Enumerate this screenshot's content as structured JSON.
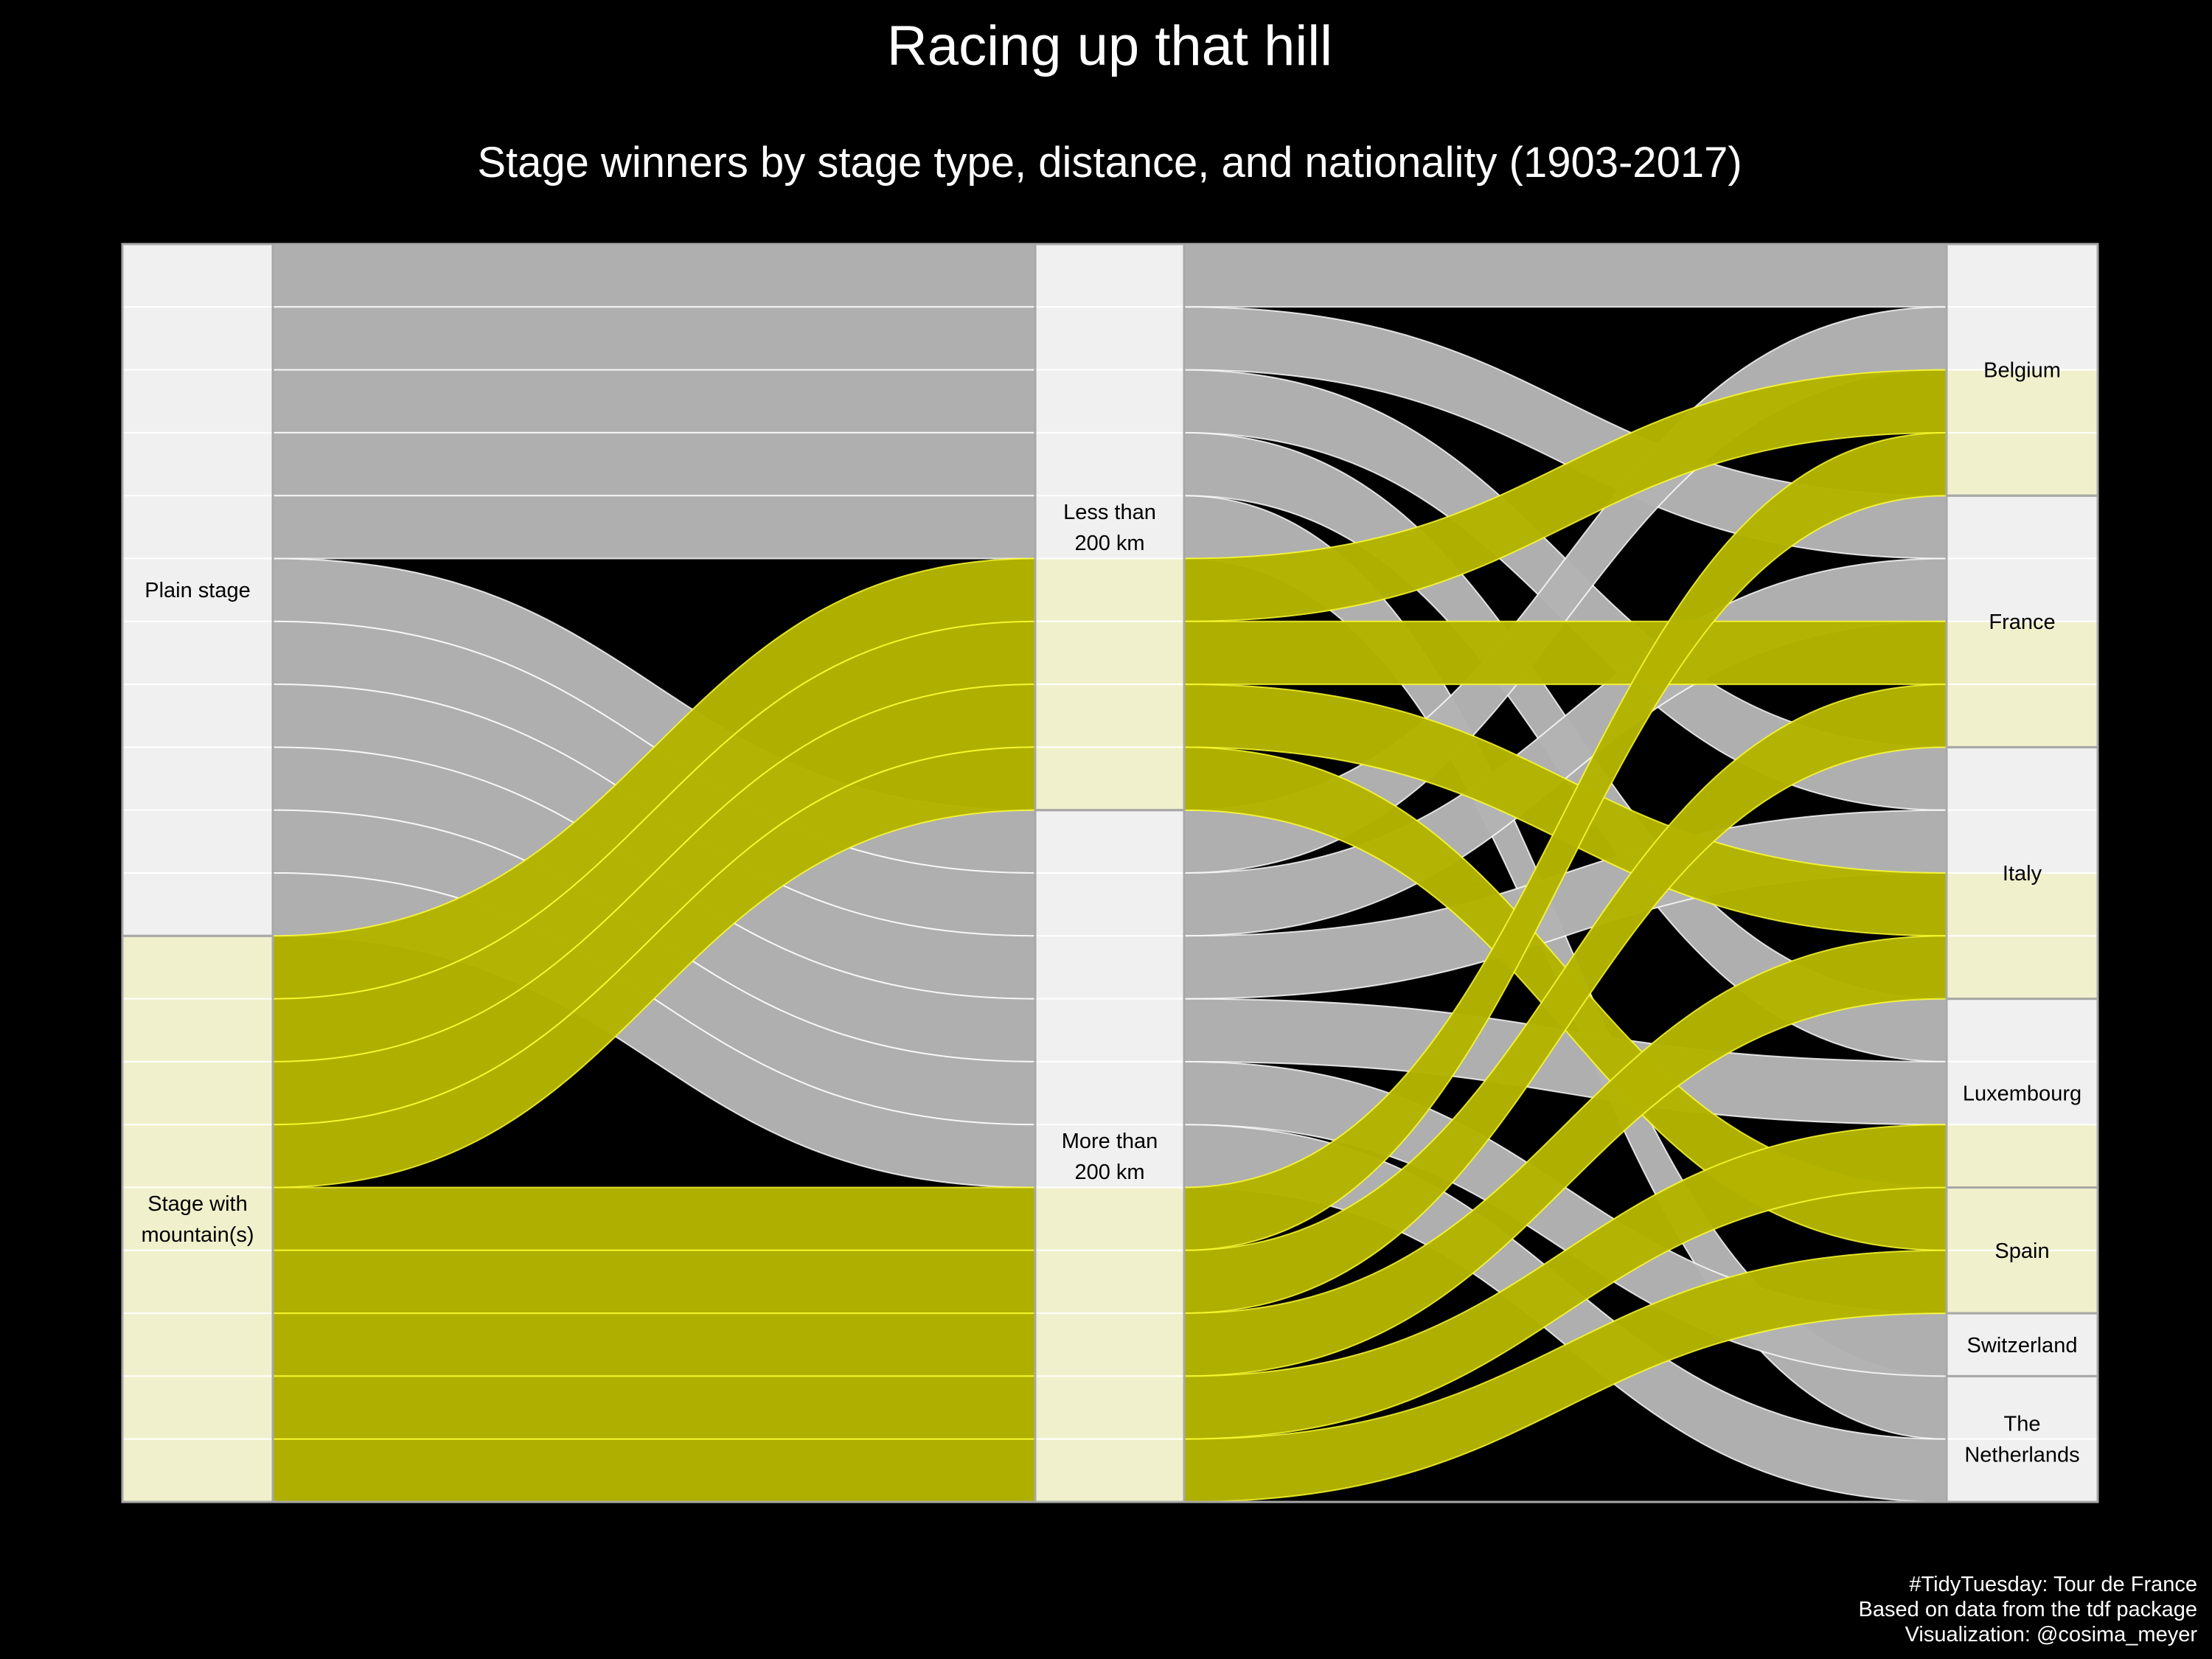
{
  "chart_data": {
    "type": "alluvial",
    "title": "Racing up that hill",
    "subtitle": "Stage winners by stage type, distance, and nationality (1903-2017)",
    "caption": [
      "#TidyTuesday: Tour de France",
      "Based on data from the tdf package",
      "Visualization: @cosima_meyer"
    ],
    "axes": [
      {
        "name": "stage_type",
        "categories": [
          "Plain stage",
          "Stage with\nmountain(s)"
        ]
      },
      {
        "name": "distance",
        "categories": [
          "Less than\n200 km",
          "More than\n200 km"
        ]
      },
      {
        "name": "nationality",
        "categories": [
          "Belgium",
          "France",
          "Italy",
          "Luxembourg",
          "Spain",
          "Switzerland",
          "The\nNetherlands"
        ]
      }
    ],
    "fill_by": "stage_type",
    "colors": {
      "Plain stage": "#b3b3b3",
      "Stage with\nmountain(s)": "#b3b300",
      "highlight_plain": "#e8e8e8",
      "highlight_mountain": "#e6e632",
      "stratum_plain": "#f0f0f0",
      "stratum_mountain": "#f0f0cc",
      "background": "#000000"
    },
    "alluvia": [
      {
        "stage_type": "Plain stage",
        "distance": "Less than\n200 km",
        "nationality": "Belgium",
        "count": 1
      },
      {
        "stage_type": "Plain stage",
        "distance": "Less than\n200 km",
        "nationality": "France",
        "count": 1
      },
      {
        "stage_type": "Plain stage",
        "distance": "Less than\n200 km",
        "nationality": "Italy",
        "count": 1
      },
      {
        "stage_type": "Plain stage",
        "distance": "Less than\n200 km",
        "nationality": "Luxembourg",
        "count": 1
      },
      {
        "stage_type": "Plain stage",
        "distance": "Less than\n200 km",
        "nationality": "The\nNetherlands",
        "count": 1
      },
      {
        "stage_type": "Plain stage",
        "distance": "More than\n200 km",
        "nationality": "Belgium",
        "count": 1
      },
      {
        "stage_type": "Plain stage",
        "distance": "More than\n200 km",
        "nationality": "France",
        "count": 1
      },
      {
        "stage_type": "Plain stage",
        "distance": "More than\n200 km",
        "nationality": "Italy",
        "count": 1
      },
      {
        "stage_type": "Plain stage",
        "distance": "More than\n200 km",
        "nationality": "Luxembourg",
        "count": 1
      },
      {
        "stage_type": "Plain stage",
        "distance": "More than\n200 km",
        "nationality": "Switzerland",
        "count": 1
      },
      {
        "stage_type": "Plain stage",
        "distance": "More than\n200 km",
        "nationality": "The\nNetherlands",
        "count": 1
      },
      {
        "stage_type": "Stage with\nmountain(s)",
        "distance": "Less than\n200 km",
        "nationality": "Belgium",
        "count": 1
      },
      {
        "stage_type": "Stage with\nmountain(s)",
        "distance": "Less than\n200 km",
        "nationality": "France",
        "count": 1
      },
      {
        "stage_type": "Stage with\nmountain(s)",
        "distance": "Less than\n200 km",
        "nationality": "Italy",
        "count": 1
      },
      {
        "stage_type": "Stage with\nmountain(s)",
        "distance": "Less than\n200 km",
        "nationality": "Spain",
        "count": 1
      },
      {
        "stage_type": "Stage with\nmountain(s)",
        "distance": "More than\n200 km",
        "nationality": "Belgium",
        "count": 1
      },
      {
        "stage_type": "Stage with\nmountain(s)",
        "distance": "More than\n200 km",
        "nationality": "France",
        "count": 1
      },
      {
        "stage_type": "Stage with\nmountain(s)",
        "distance": "More than\n200 km",
        "nationality": "Italy",
        "count": 1
      },
      {
        "stage_type": "Stage with\nmountain(s)",
        "distance": "More than\n200 km",
        "nationality": "Luxembourg",
        "count": 1
      },
      {
        "stage_type": "Stage with\nmountain(s)",
        "distance": "More than\n200 km",
        "nationality": "Spain",
        "count": 1
      }
    ]
  }
}
